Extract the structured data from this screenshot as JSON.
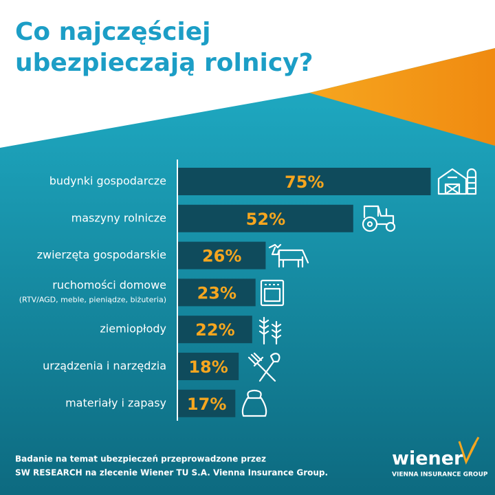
{
  "chart_data": {
    "type": "bar",
    "title": [
      "Co najczęściej",
      "ubezpieczają rolnicy?"
    ],
    "categories": [
      "budynki gospodarcze",
      "maszyny rolnicze",
      "zwierzęta gospodarskie",
      "ruchomości domowe",
      "ziemiopłody",
      "urządzenia i narzędzia",
      "materiały i zapasy"
    ],
    "category_notes": [
      null,
      null,
      null,
      "(RTV/AGD, meble, pieniądze, biżuteria)",
      null,
      null,
      null
    ],
    "values": [
      75,
      52,
      26,
      23,
      22,
      18,
      17
    ],
    "value_labels": [
      "75%",
      "52%",
      "26%",
      "23%",
      "22%",
      "18%",
      "17%"
    ],
    "color": "#0f4b5c",
    "label_color": "#f6a61f",
    "footnote": [
      "Badanie na temat ubezpieczeń przeprowadzone przez",
      "SW RESEARCH na zlecenie Wiener TU S.A. Vienna Insurance Group."
    ],
    "logo": {
      "name": "wiener",
      "tagline": "VIENNA INSURANCE GROUP"
    }
  }
}
